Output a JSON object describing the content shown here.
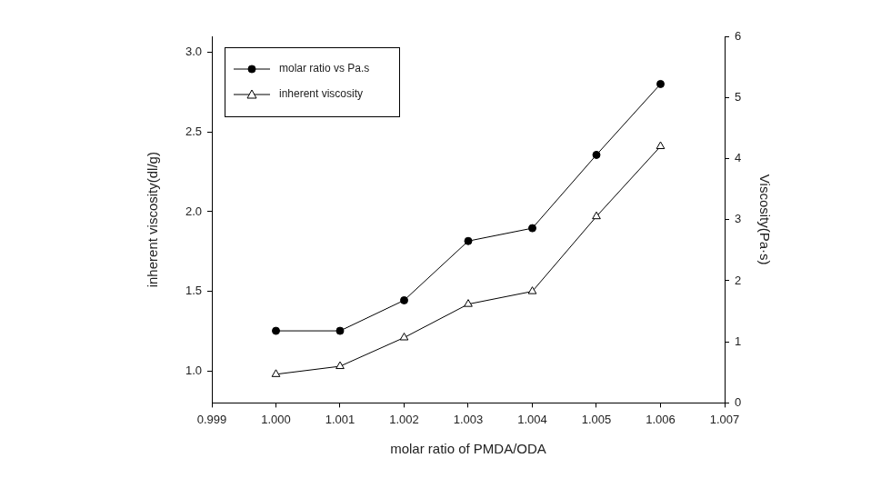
{
  "chart_data": {
    "type": "line",
    "x_label": "molar ratio of PMDA/ODA",
    "y_label": "inherent viscosity(dl/g)",
    "y2_label": "Viscosity(Pa·s)",
    "x": [
      1.0,
      1.001,
      1.002,
      1.003,
      1.004,
      1.005,
      1.006
    ],
    "series": [
      {
        "name": "molar ratio vs Pa.s",
        "color": "#000000",
        "marker": "circle",
        "line_style": "solid",
        "axis": "y2",
        "values": [
          1.18,
          1.18,
          1.68,
          2.65,
          2.86,
          4.06,
          5.22
        ]
      },
      {
        "name": "inherent viscosity",
        "color": "#000000",
        "marker": "open-triangle",
        "line_style": "solid",
        "values": [
          0.98,
          1.03,
          1.21,
          1.42,
          1.5,
          1.97,
          2.41
        ]
      }
    ],
    "xlim": [
      0.999,
      1.007
    ],
    "xticks": [
      0.999,
      {
        "value": 1,
        "label": "1.000"
      },
      1.001,
      1.002,
      1.003,
      1.004,
      1.005,
      1.006,
      1.007
    ],
    "ylim": [
      0.8,
      3.1
    ],
    "yticks": [
      {
        "value": 1,
        "label": "1.0"
      },
      1.5,
      {
        "value": 2,
        "label": "2.0"
      },
      2.5,
      {
        "value": 3,
        "label": "3.0"
      }
    ],
    "y2lim": [
      0,
      6
    ],
    "y2ticks": [
      0,
      1,
      2,
      3,
      4,
      5,
      6
    ],
    "grid": false,
    "legend": "upper left"
  }
}
